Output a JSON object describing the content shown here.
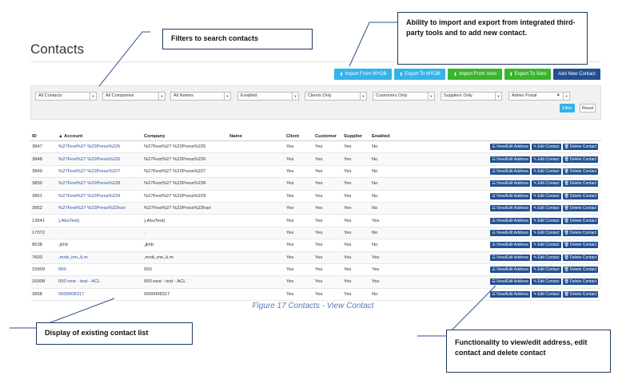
{
  "page": {
    "title": "Contacts"
  },
  "toolbar": {
    "import_myob": "Import From MYOB",
    "export_myob": "Export To MYOB",
    "import_xero": "Import From Xero",
    "export_xero": "Export To Xero",
    "add_new": "Add New Contact",
    "colors": {
      "blue": "#35b2e8",
      "green": "#39b52e",
      "dark": "#23508f"
    }
  },
  "filters": {
    "contacts": "All Contacts",
    "companies": "All Companies",
    "names": "All Names",
    "enabled": "Enabled",
    "clients": "Clients Only",
    "customers": "Customers Only",
    "suppliers": "Suppliers Only",
    "portal": "Admin Portal",
    "filter_button": "Filter",
    "reset_button": "Reset"
  },
  "table": {
    "columns": [
      "ID",
      "Account",
      "Company",
      "Name",
      "Client",
      "Customer",
      "Supplier",
      "Enabled"
    ],
    "sort_indicator": "▲",
    "actions": {
      "view": "View/Edit Address",
      "edit": "Edit Contact",
      "delete": "Delete Contact"
    },
    "rows": [
      {
        "id": "3847",
        "account": "%27Fest%27 %22Press%225",
        "company": "%27Fest%27 %22Press%225",
        "name": "",
        "client": "Yes",
        "customer": "Yes",
        "supplier": "Yes",
        "enabled": "No"
      },
      {
        "id": "3848",
        "account": "%27Fest%27 %22Press%226",
        "company": "%27Fest%27 %22Press%226",
        "name": "",
        "client": "Yes",
        "customer": "Yes",
        "supplier": "Yes",
        "enabled": "No"
      },
      {
        "id": "3849",
        "account": "%27Fest%27 %22Press%227",
        "company": "%27Fest%27 %22Press%227",
        "name": "",
        "client": "Yes",
        "customer": "Yes",
        "supplier": "Yes",
        "enabled": "No"
      },
      {
        "id": "3850",
        "account": "%27Fest%27 %22Press%228",
        "company": "%27Fest%27 %22Press%228",
        "name": "",
        "client": "Yes",
        "customer": "Yes",
        "supplier": "Yes",
        "enabled": "No"
      },
      {
        "id": "3851",
        "account": "%27Fest%27 %22Press%229",
        "company": "%27Fest%27 %22Press%229",
        "name": "",
        "client": "Yes",
        "customer": "Yes",
        "supplier": "Yes",
        "enabled": "No"
      },
      {
        "id": "3852",
        "account": "%27Fest%27 %22Press%22hari",
        "company": "%27Fest%27 %22Press%22hari",
        "name": "",
        "client": "Yes",
        "customer": "Yes",
        "supplier": "Yes",
        "enabled": "No"
      },
      {
        "id": "13641",
        "account": "),AbuTest(",
        "company": "),AbuTest(",
        "name": "",
        "client": "Yes",
        "customer": "Yes",
        "supplier": "Yes",
        "enabled": "Yes"
      },
      {
        "id": "17072",
        "account": ".",
        "company": ".",
        "name": "",
        "client": "Yes",
        "customer": "Yes",
        "supplier": "Yes",
        "enabled": "No"
      },
      {
        "id": "8538",
        "account": ",jkhb",
        "company": ",jkhb",
        "name": "",
        "client": "Yes",
        "customer": "Yes",
        "supplier": "Yes",
        "enabled": "No"
      },
      {
        "id": "7603",
        "account": ",mnb,,mn,,k.m",
        "company": ",mnb,,mn,,k.m",
        "name": "",
        "client": "Yes",
        "customer": "Yes",
        "supplier": "Yes",
        "enabled": "Yes"
      },
      {
        "id": "15909",
        "account": "000",
        "company": "000",
        "name": "",
        "client": "Yes",
        "customer": "Yes",
        "supplier": "Yes",
        "enabled": "Yes"
      },
      {
        "id": "16008",
        "account": "000 new - test - ACL",
        "company": "000 new - test - ACL",
        "name": "",
        "client": "Yes",
        "customer": "Yes",
        "supplier": "Yes",
        "enabled": "Yes"
      },
      {
        "id": "3858",
        "account": "0000008317",
        "company": "0000008317",
        "name": "",
        "client": "Yes",
        "customer": "Yes",
        "supplier": "Yes",
        "enabled": "No"
      }
    ]
  },
  "caption": "Figure 17 Contacts - View Contact",
  "callouts": {
    "filters": "Filters to search contacts",
    "import_export": "Ability to import and export from integrated third-party tools and to add new contact.",
    "list": "Display of existing contact list",
    "actions": "Functionality to view/edit address, edit contact and delete contact"
  }
}
